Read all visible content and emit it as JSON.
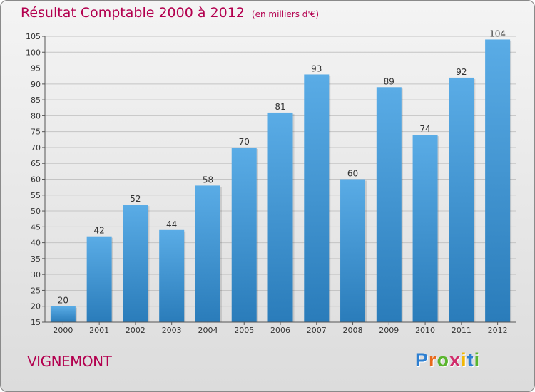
{
  "colors": {
    "title": "#b3004f",
    "bar_light": "#5aace6",
    "bar_dark": "#2a7cba",
    "axis": "#555555",
    "grid": "#c4c4c4"
  },
  "chart_data": {
    "type": "bar",
    "title": "Résultat Comptable 2000 à 2012",
    "subtitle": "(en milliers d'€)",
    "xlabel": "",
    "ylabel": "",
    "ylim": [
      15,
      105
    ],
    "yticks": [
      15,
      20,
      25,
      30,
      35,
      40,
      45,
      50,
      55,
      60,
      65,
      70,
      75,
      80,
      85,
      90,
      95,
      100,
      105
    ],
    "grid": true,
    "categories": [
      "2000",
      "2001",
      "2002",
      "2003",
      "2004",
      "2005",
      "2006",
      "2007",
      "2008",
      "2009",
      "2010",
      "2011",
      "2012"
    ],
    "values": [
      20,
      42,
      52,
      44,
      58,
      70,
      81,
      93,
      60,
      89,
      74,
      92,
      104
    ]
  },
  "commune": "VIGNEMONT",
  "logo": {
    "text": "Proxiti",
    "letters": [
      {
        "ch": "P",
        "color": "#2d7fd1"
      },
      {
        "ch": "r",
        "color": "#e8691b"
      },
      {
        "ch": "o",
        "color": "#5ab52e"
      },
      {
        "ch": "x",
        "color": "#d12d6b"
      },
      {
        "ch": "i",
        "color": "#f2b705"
      },
      {
        "ch": "t",
        "color": "#2d7fd1"
      },
      {
        "ch": "i",
        "color": "#5ab52e"
      }
    ]
  }
}
